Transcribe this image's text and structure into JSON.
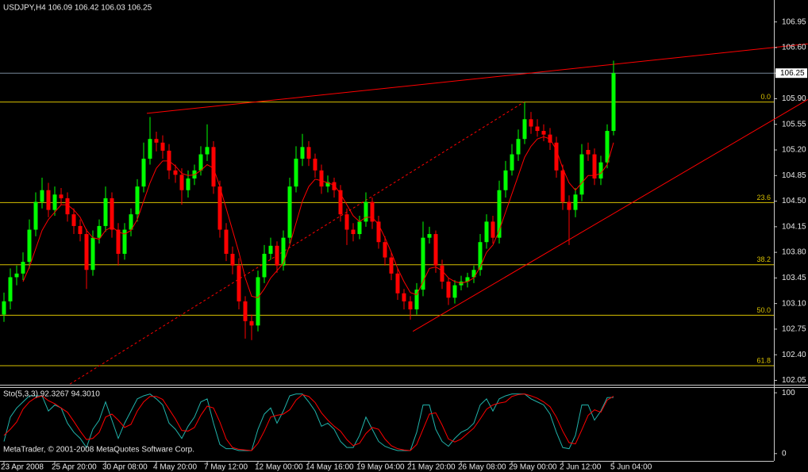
{
  "chart_data": [
    {
      "type": "candlestick",
      "title": "USDJPY,H4  106.09 106.42 106.03 106.25",
      "categories": [
        "23 Apr 2008",
        null,
        null,
        null,
        null,
        null,
        null,
        null,
        "25 Apr 20:00",
        null,
        null,
        null,
        null,
        null,
        null,
        null,
        "30 Apr 08:00",
        null,
        null,
        null,
        null,
        null,
        null,
        null,
        "4 May 20:00",
        null,
        null,
        null,
        null,
        null,
        null,
        null,
        "7 May 12:00",
        null,
        null,
        null,
        null,
        null,
        null,
        null,
        "12 May 00:00",
        null,
        null,
        null,
        null,
        null,
        null,
        null,
        "14 May 16:00",
        null,
        null,
        null,
        null,
        null,
        null,
        null,
        "19 May 04:00",
        null,
        null,
        null,
        null,
        null,
        null,
        null,
        "21 May 20:00",
        null,
        null,
        null,
        null,
        null,
        null,
        null,
        "26 May 08:00",
        null,
        null,
        null,
        null,
        null,
        null,
        null,
        "29 May 00:00",
        null,
        null,
        null,
        null,
        null,
        null,
        null,
        "2 Jun 12:00",
        null,
        null,
        null,
        null,
        null,
        null,
        null,
        "5 Jun 04:00"
      ],
      "open": [
        102.95,
        103.13,
        103.46,
        103.51,
        103.67,
        104.11,
        104.49,
        104.65,
        104.38,
        104.59,
        104.54,
        104.32,
        104.16,
        104.05,
        103.56,
        104.0,
        104.16,
        104.54,
        104.11,
        103.78,
        104.11,
        104.32,
        104.7,
        105.08,
        105.35,
        105.3,
        105.19,
        104.92,
        104.86,
        104.65,
        104.81,
        104.92,
        105.14,
        105.24,
        104.7,
        104.11,
        103.78,
        103.62,
        103.13,
        102.86,
        102.8,
        103.46,
        103.78,
        103.89,
        103.62,
        104.0,
        104.7,
        105.08,
        105.24,
        105.08,
        104.92,
        104.7,
        104.76,
        104.65,
        104.32,
        104.11,
        104.05,
        104.22,
        104.49,
        104.22,
        103.94,
        103.73,
        103.51,
        103.24,
        103.13,
        103.02,
        103.29,
        104.0,
        104.05,
        103.62,
        103.4,
        103.18,
        103.35,
        103.4,
        103.46,
        103.56,
        103.94,
        104.22,
        104.0,
        104.65,
        104.92,
        105.14,
        105.35,
        105.62,
        105.52,
        105.46,
        105.41,
        105.3,
        104.92,
        104.49,
        104.38,
        104.59,
        105.2,
        105.14,
        104.81,
        105.03,
        105.46
      ],
      "high": [
        103.25,
        103.58,
        103.62,
        103.8,
        104.25,
        104.62,
        104.82,
        104.75,
        104.7,
        104.68,
        104.62,
        104.4,
        104.25,
        104.12,
        104.1,
        104.25,
        104.7,
        104.62,
        104.2,
        104.2,
        104.4,
        104.8,
        105.3,
        105.65,
        105.45,
        105.4,
        105.28,
        105.0,
        104.95,
        104.92,
        105.0,
        105.25,
        105.55,
        105.32,
        104.78,
        104.2,
        103.88,
        103.72,
        103.2,
        102.95,
        103.55,
        103.9,
        104.0,
        103.95,
        104.1,
        104.82,
        105.25,
        105.42,
        105.32,
        105.15,
        105.0,
        104.85,
        104.82,
        104.72,
        104.4,
        104.2,
        104.3,
        104.62,
        104.55,
        104.3,
        104.02,
        103.8,
        103.58,
        103.3,
        103.2,
        103.38,
        104.22,
        104.15,
        104.1,
        103.7,
        103.45,
        103.42,
        103.48,
        103.52,
        103.62,
        104.05,
        104.32,
        104.3,
        104.78,
        105.05,
        105.28,
        105.48,
        105.85,
        105.72,
        105.62,
        105.55,
        105.5,
        105.38,
        105.0,
        104.58,
        104.68,
        105.28,
        105.3,
        105.22,
        105.12,
        105.55,
        106.42
      ],
      "low": [
        102.85,
        103.02,
        103.35,
        103.42,
        103.58,
        104.02,
        104.4,
        104.28,
        104.3,
        104.45,
        104.22,
        104.05,
        103.95,
        103.3,
        103.48,
        103.92,
        104.08,
        104.0,
        103.62,
        103.7,
        104.02,
        104.22,
        104.62,
        105.0,
        105.18,
        105.08,
        104.8,
        104.75,
        104.45,
        104.55,
        104.72,
        104.85,
        105.05,
        104.6,
        104.0,
        103.68,
        103.5,
        103.02,
        102.62,
        102.6,
        102.72,
        103.38,
        103.7,
        103.52,
        103.55,
        103.92,
        104.62,
        104.98,
        104.98,
        104.82,
        104.6,
        104.62,
        104.55,
        104.22,
        103.9,
        103.95,
        103.98,
        104.15,
        104.12,
        103.85,
        103.62,
        103.42,
        103.15,
        103.02,
        102.88,
        102.95,
        103.2,
        103.92,
        103.52,
        103.3,
        103.08,
        103.1,
        103.28,
        103.32,
        103.38,
        103.48,
        103.85,
        103.92,
        103.92,
        104.55,
        104.85,
        105.05,
        105.28,
        105.42,
        105.38,
        105.32,
        105.2,
        104.82,
        104.38,
        103.9,
        104.28,
        104.5,
        105.05,
        104.72,
        104.72,
        104.95,
        105.4
      ],
      "close": [
        103.13,
        103.46,
        103.51,
        103.67,
        104.11,
        104.49,
        104.65,
        104.38,
        104.59,
        104.54,
        104.32,
        104.16,
        104.05,
        103.56,
        104.0,
        104.16,
        104.54,
        104.11,
        103.78,
        104.11,
        104.32,
        104.7,
        105.08,
        105.35,
        105.3,
        105.19,
        104.92,
        104.86,
        104.65,
        104.81,
        104.92,
        105.14,
        105.24,
        104.7,
        104.11,
        103.78,
        103.62,
        103.13,
        102.86,
        102.8,
        103.46,
        103.78,
        103.89,
        103.62,
        104.0,
        104.7,
        105.08,
        105.24,
        105.08,
        104.92,
        104.7,
        104.76,
        104.65,
        104.32,
        104.11,
        104.05,
        104.22,
        104.49,
        104.22,
        103.94,
        103.73,
        103.51,
        103.24,
        103.13,
        103.02,
        103.29,
        104.0,
        104.05,
        103.62,
        103.4,
        103.18,
        103.35,
        103.4,
        103.46,
        103.56,
        103.94,
        104.22,
        104.0,
        104.65,
        104.92,
        105.14,
        105.35,
        105.62,
        105.52,
        105.46,
        105.41,
        105.3,
        104.92,
        104.49,
        104.38,
        104.59,
        105.14,
        105.14,
        104.81,
        105.03,
        105.46,
        106.25
      ],
      "up_color": "#00ff00",
      "down_color": "#ff0000",
      "ma": {
        "color": "#ff0000",
        "values": [
          null,
          null,
          null,
          103.4,
          103.6,
          103.85,
          104.1,
          104.25,
          104.35,
          104.45,
          104.45,
          104.38,
          104.28,
          104.1,
          104.0,
          103.98,
          104.1,
          104.15,
          104.08,
          104.05,
          104.1,
          104.25,
          104.5,
          104.75,
          104.95,
          105.05,
          105.05,
          104.98,
          104.88,
          104.85,
          104.86,
          104.92,
          105.0,
          104.95,
          104.7,
          104.4,
          104.1,
          103.8,
          103.45,
          103.2,
          103.18,
          103.3,
          103.45,
          103.55,
          103.65,
          103.9,
          104.2,
          104.5,
          104.7,
          104.8,
          104.78,
          104.75,
          104.72,
          104.6,
          104.45,
          104.3,
          104.22,
          104.28,
          104.28,
          104.18,
          104.0,
          103.8,
          103.58,
          103.4,
          103.25,
          103.22,
          103.4,
          103.58,
          103.6,
          103.55,
          103.45,
          103.4,
          103.38,
          103.4,
          103.45,
          103.6,
          103.8,
          103.9,
          104.1,
          104.35,
          104.6,
          104.85,
          105.1,
          105.25,
          105.35,
          105.38,
          105.35,
          105.2,
          104.95,
          104.75,
          104.65,
          104.75,
          104.85,
          104.85,
          104.88,
          105.0,
          105.3
        ]
      },
      "trendlines": [
        {
          "color": "#ff0000",
          "dashed": false,
          "points": [
            [
              22.5,
              105.7
            ],
            [
              126.6,
              106.65
            ]
          ]
        },
        {
          "color": "#ff0000",
          "dashed": false,
          "points": [
            [
              64.4,
              102.72
            ],
            [
              126.6,
              105.89
            ]
          ]
        },
        {
          "color": "#ff0000",
          "dashed": true,
          "points": [
            [
              10.4,
              102.0
            ],
            [
              81.9,
              105.855
            ]
          ]
        }
      ],
      "fib_color": "#d8c000",
      "fib_levels": [
        {
          "label": "0.0",
          "value": 105.855
        },
        {
          "label": "23.6",
          "value": 104.48
        },
        {
          "label": "38.2",
          "value": 103.63
        },
        {
          "label": "50.0",
          "value": 102.94
        },
        {
          "label": "61.8",
          "value": 102.25
        }
      ],
      "current_price": 106.25,
      "ylim": [
        101.99,
        107.25
      ],
      "yticks": [
        106.95,
        {
          "value": 106.6,
          "label": "106.60"
        },
        106.25,
        {
          "value": 105.9,
          "label": "105.90"
        },
        105.55,
        {
          "value": 105.2,
          "label": "105.20"
        },
        104.85,
        {
          "value": 104.5,
          "label": "104.50"
        },
        104.15,
        {
          "value": 103.8,
          "label": "103.80"
        },
        103.45,
        {
          "value": 103.1,
          "label": "103.10"
        },
        102.75,
        {
          "value": 102.4,
          "label": "102.40"
        },
        102.05
      ]
    },
    {
      "type": "line",
      "title": "Sto(5,3,3) 92.3267 94.3010",
      "series": [
        {
          "color": "#20b2aa",
          "values": [
            20,
            60,
            75,
            85,
            95,
            95,
            95,
            70,
            80,
            75,
            50,
            35,
            25,
            10,
            40,
            55,
            85,
            55,
            25,
            50,
            70,
            90,
            95,
            98,
            90,
            80,
            50,
            40,
            25,
            45,
            60,
            85,
            90,
            50,
            15,
            8,
            8,
            5,
            5,
            5,
            40,
            65,
            75,
            50,
            70,
            95,
            98,
            98,
            85,
            70,
            45,
            50,
            40,
            20,
            10,
            10,
            30,
            60,
            40,
            20,
            12,
            8,
            5,
            5,
            5,
            35,
            80,
            80,
            40,
            20,
            12,
            25,
            35,
            40,
            50,
            80,
            90,
            70,
            90,
            95,
            98,
            98,
            98,
            90,
            85,
            80,
            65,
            35,
            10,
            8,
            30,
            80,
            80,
            55,
            70,
            92,
            92.33
          ]
        },
        {
          "color": "#ff0000",
          "values": [
            30,
            40,
            52,
            73,
            85,
            92,
            95,
            87,
            82,
            75,
            68,
            53,
            37,
            23,
            25,
            35,
            60,
            65,
            55,
            43,
            48,
            70,
            85,
            94,
            94,
            89,
            73,
            57,
            38,
            37,
            43,
            63,
            78,
            75,
            52,
            24,
            10,
            7,
            6,
            5,
            17,
            37,
            60,
            63,
            65,
            72,
            88,
            97,
            94,
            84,
            67,
            55,
            45,
            37,
            23,
            13,
            17,
            33,
            43,
            40,
            24,
            13,
            8,
            6,
            5,
            15,
            40,
            65,
            67,
            47,
            24,
            19,
            24,
            33,
            42,
            57,
            73,
            80,
            83,
            85,
            94,
            97,
            98,
            95,
            91,
            85,
            77,
            60,
            37,
            18,
            16,
            39,
            63,
            72,
            68,
            88,
            94.3
          ]
        }
      ],
      "ylim": [
        -12,
        108
      ],
      "yticks": [
        100,
        0
      ]
    }
  ],
  "footer": "MetaTrader, © 2001-2008 MetaQuotes Software Corp."
}
